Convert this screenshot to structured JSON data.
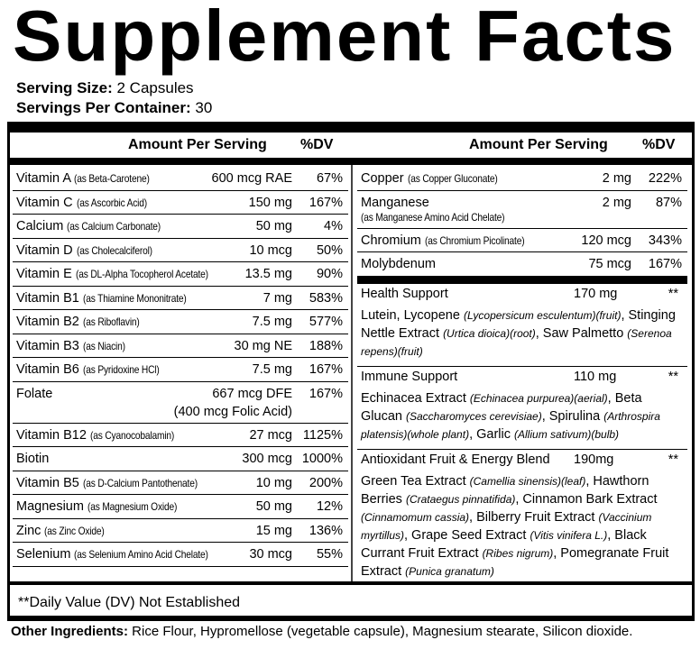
{
  "title": "Supplement Facts",
  "serving_size": {
    "label": "Serving Size:",
    "value": "2 Capsules"
  },
  "servings_per_container": {
    "label": "Servings Per Container:",
    "value": "30"
  },
  "header": {
    "amount": "Amount Per Serving",
    "dv": "%DV"
  },
  "left_rows": [
    {
      "name": "Vitamin A",
      "qual": "(as Beta-Carotene)",
      "amount": "600 mcg RAE",
      "dv": "67%"
    },
    {
      "name": "Vitamin C",
      "qual": "(as Ascorbic Acid)",
      "amount": "150 mg",
      "dv": "167%"
    },
    {
      "name": "Calcium",
      "qual": "(as Calcium Carbonate)",
      "amount": "50 mg",
      "dv": "4%"
    },
    {
      "name": "Vitamin D",
      "qual": "(as Cholecalciferol)",
      "amount": "10 mcg",
      "dv": "50%"
    },
    {
      "name": "Vitamin E",
      "qual": "(as DL-Alpha Tocopherol Acetate)",
      "amount": "13.5 mg",
      "dv": "90%"
    },
    {
      "name": "Vitamin B1",
      "qual": "(as Thiamine Mononitrate)",
      "amount": "7 mg",
      "dv": "583%"
    },
    {
      "name": "Vitamin B2",
      "qual": "(as Riboflavin)",
      "amount": "7.5 mg",
      "dv": "577%"
    },
    {
      "name": "Vitamin B3",
      "qual": "(as Niacin)",
      "amount": "30 mg NE",
      "dv": "188%"
    },
    {
      "name": "Vitamin B6",
      "qual": "(as Pyridoxine HCl)",
      "amount": "7.5 mg",
      "dv": "167%"
    },
    {
      "name": "Folate",
      "qual": "",
      "amount": "667 mcg DFE",
      "amount2": "(400 mcg Folic Acid)",
      "dv": "167%"
    },
    {
      "name": "Vitamin B12",
      "qual": "(as Cyanocobalamin)",
      "amount": "27 mcg",
      "dv": "1125%"
    },
    {
      "name": "Biotin",
      "qual": "",
      "amount": "300 mcg",
      "dv": "1000%"
    },
    {
      "name": "Vitamin B5",
      "qual": "(as D-Calcium Pantothenate)",
      "amount": "10 mg",
      "dv": "200%"
    },
    {
      "name": "Magnesium",
      "qual": "(as Magnesium Oxide)",
      "amount": "50 mg",
      "dv": "12%"
    },
    {
      "name": "Zinc",
      "qual": "(as Zinc Oxide)",
      "amount": "15 mg",
      "dv": "136%"
    },
    {
      "name": "Selenium",
      "qual": "(as Selenium Amino Acid Chelate)",
      "amount": "30 mcg",
      "dv": "55%"
    }
  ],
  "right_rows": [
    {
      "name": "Copper",
      "qual": "(as Copper Gluconate)",
      "amount": "2 mg",
      "dv": "222%"
    },
    {
      "name": "Manganese",
      "qual": "(as Manganese Amino Acid Chelate)",
      "amount": "2 mg",
      "dv": "87%"
    },
    {
      "name": "Chromium",
      "qual": "(as Chromium Picolinate)",
      "amount": "120 mcg",
      "dv": "343%"
    },
    {
      "name": "Molybdenum",
      "qual": "",
      "amount": "75 mcg",
      "dv": "167%"
    }
  ],
  "blends": [
    {
      "name": "Health Support",
      "amount": "170 mg",
      "dv": "**",
      "parts": [
        [
          "Lutein, Lycopene ",
          "(Lycopersicum esculentum)(fruit)"
        ],
        [
          ", Stinging Nettle Extract ",
          "(Urtica dioica)(root)"
        ],
        [
          ", Saw Palmetto ",
          "(Serenoa repens)(fruit)"
        ]
      ]
    },
    {
      "name": "Immune Support",
      "amount": "110 mg",
      "dv": "**",
      "parts": [
        [
          "Echinacea Extract ",
          "(Echinacea purpurea)(aerial)"
        ],
        [
          ", Beta Glucan ",
          "(Saccharomyces cerevisiae)"
        ],
        [
          ", Spirulina ",
          "(Arthrospira platensis)(whole plant)"
        ],
        [
          ", Garlic ",
          "(Allium sativum)(bulb)"
        ]
      ]
    },
    {
      "name": "Antioxidant Fruit & Energy Blend",
      "amount": "190mg",
      "dv": "**",
      "parts": [
        [
          "Green Tea Extract ",
          "(Camellia sinensis)(leaf)"
        ],
        [
          ", Hawthorn Berries ",
          "(Crataegus pinnatifida)"
        ],
        [
          ", Cinnamon Bark Extract ",
          "(Cinnamomum cassia)"
        ],
        [
          ", Bilberry Fruit Extract ",
          "(Vaccinium myrtillus)"
        ],
        [
          ", Grape Seed Extract ",
          "(Vitis vinifera L.)"
        ],
        [
          ", Black Currant Fruit Extract ",
          "(Ribes nigrum)"
        ],
        [
          ", Pomegranate Fruit Extract ",
          "(Punica granatum)"
        ]
      ]
    }
  ],
  "footnote": "**Daily Value (DV) Not Established",
  "other": {
    "label": "Other Ingredients:",
    "value": " Rice Flour, Hypromellose (vegetable capsule), Magnesium stearate, Silicon dioxide."
  }
}
